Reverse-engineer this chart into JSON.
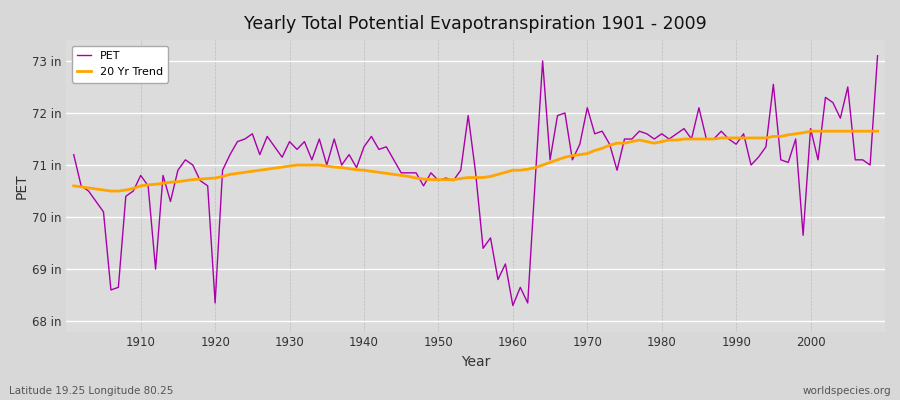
{
  "title": "Yearly Total Potential Evapotranspiration 1901 - 2009",
  "xlabel": "Year",
  "ylabel": "PET",
  "subtitle_left": "Latitude 19.25 Longitude 80.25",
  "subtitle_right": "worldspecies.org",
  "pet_color": "#AA00AA",
  "trend_color": "#FFA500",
  "bg_color": "#D8D8D8",
  "plot_bg_color": "#DCDCDC",
  "ylim": [
    67.8,
    73.4
  ],
  "yticks": [
    68,
    69,
    70,
    71,
    72,
    73
  ],
  "ytick_labels": [
    "68 in",
    "69 in",
    "70 in",
    "71 in",
    "72 in",
    "73 in"
  ],
  "xlim": [
    1900,
    2010
  ],
  "xticks": [
    1910,
    1920,
    1930,
    1940,
    1950,
    1960,
    1970,
    1980,
    1990,
    2000
  ],
  "years": [
    1901,
    1902,
    1903,
    1904,
    1905,
    1906,
    1907,
    1908,
    1909,
    1910,
    1911,
    1912,
    1913,
    1914,
    1915,
    1916,
    1917,
    1918,
    1919,
    1920,
    1921,
    1922,
    1923,
    1924,
    1925,
    1926,
    1927,
    1928,
    1929,
    1930,
    1931,
    1932,
    1933,
    1934,
    1935,
    1936,
    1937,
    1938,
    1939,
    1940,
    1941,
    1942,
    1943,
    1944,
    1945,
    1946,
    1947,
    1948,
    1949,
    1950,
    1951,
    1952,
    1953,
    1954,
    1955,
    1956,
    1957,
    1958,
    1959,
    1960,
    1961,
    1962,
    1963,
    1964,
    1965,
    1966,
    1967,
    1968,
    1969,
    1970,
    1971,
    1972,
    1973,
    1974,
    1975,
    1976,
    1977,
    1978,
    1979,
    1980,
    1981,
    1982,
    1983,
    1984,
    1985,
    1986,
    1987,
    1988,
    1989,
    1990,
    1991,
    1992,
    1993,
    1994,
    1995,
    1996,
    1997,
    1998,
    1999,
    2000,
    2001,
    2002,
    2003,
    2004,
    2005,
    2006,
    2007,
    2008,
    2009
  ],
  "pet_values": [
    71.2,
    70.6,
    70.5,
    70.3,
    70.1,
    68.6,
    68.65,
    70.4,
    70.5,
    70.8,
    70.6,
    69.0,
    70.8,
    70.3,
    70.9,
    71.1,
    71.0,
    70.7,
    70.6,
    68.35,
    70.9,
    71.2,
    71.45,
    71.5,
    71.6,
    71.2,
    71.55,
    71.35,
    71.15,
    71.45,
    71.3,
    71.45,
    71.1,
    71.5,
    71.0,
    71.5,
    71.0,
    71.2,
    70.95,
    71.35,
    71.55,
    71.3,
    71.35,
    71.1,
    70.85,
    70.85,
    70.85,
    70.6,
    70.85,
    70.7,
    70.75,
    70.7,
    70.9,
    71.95,
    70.85,
    69.4,
    69.6,
    68.8,
    69.1,
    68.3,
    68.65,
    68.35,
    70.7,
    73.0,
    71.1,
    71.95,
    72.0,
    71.1,
    71.4,
    72.1,
    71.6,
    71.65,
    71.4,
    70.9,
    71.5,
    71.5,
    71.65,
    71.6,
    71.5,
    71.6,
    71.5,
    71.6,
    71.7,
    71.5,
    72.1,
    71.5,
    71.5,
    71.65,
    71.5,
    71.4,
    71.6,
    71.0,
    71.15,
    71.35,
    72.55,
    71.1,
    71.05,
    71.5,
    69.65,
    71.7,
    71.1,
    72.3,
    72.2,
    71.9,
    72.5,
    71.1,
    71.1,
    71.0,
    73.1
  ],
  "trend_values": [
    70.6,
    70.58,
    70.56,
    70.54,
    70.52,
    70.5,
    70.5,
    70.52,
    70.55,
    70.6,
    70.62,
    70.63,
    70.65,
    70.67,
    70.68,
    70.7,
    70.72,
    70.73,
    70.74,
    70.75,
    70.78,
    70.82,
    70.84,
    70.86,
    70.88,
    70.9,
    70.92,
    70.94,
    70.96,
    70.98,
    71.0,
    71.0,
    71.0,
    71.0,
    70.98,
    70.96,
    70.95,
    70.93,
    70.91,
    70.9,
    70.88,
    70.86,
    70.84,
    70.82,
    70.8,
    70.78,
    70.75,
    70.73,
    70.72,
    70.72,
    70.72,
    70.72,
    70.74,
    70.76,
    70.76,
    70.76,
    70.78,
    70.82,
    70.86,
    70.9,
    70.9,
    70.92,
    70.95,
    71.0,
    71.05,
    71.1,
    71.15,
    71.18,
    71.2,
    71.22,
    71.28,
    71.32,
    71.38,
    71.42,
    71.42,
    71.45,
    71.48,
    71.45,
    71.42,
    71.45,
    71.48,
    71.48,
    71.5,
    71.5,
    71.5,
    71.5,
    71.5,
    71.52,
    71.52,
    71.52,
    71.52,
    71.52,
    71.52,
    71.52,
    71.55,
    71.55,
    71.58,
    71.6,
    71.62,
    71.65,
    71.65,
    71.65,
    71.65,
    71.65,
    71.65,
    71.65,
    71.65,
    71.65,
    71.65
  ]
}
